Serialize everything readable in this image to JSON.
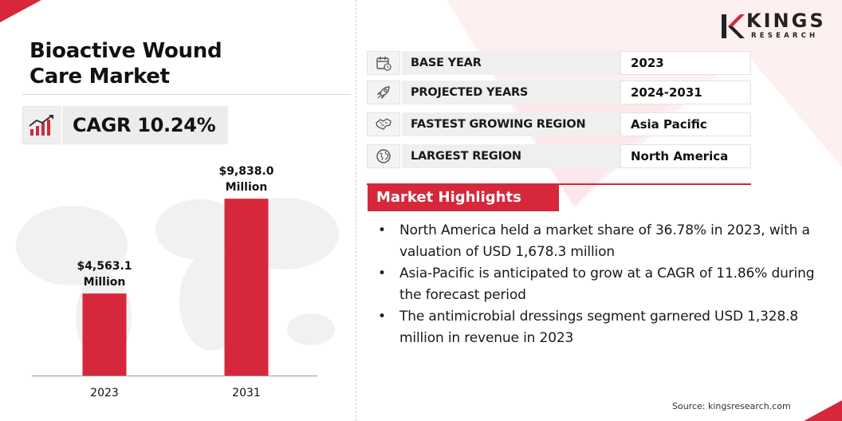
{
  "title_line1": "Bioactive Wound",
  "title_line2": "Care Market",
  "cagr": "CAGR 10.24%",
  "logo": {
    "name": "KINGS",
    "sub": "RESEARCH"
  },
  "colors": {
    "accent": "#d6283a",
    "bar": "#d6283a",
    "label_bg": "#efefef"
  },
  "info_rows": [
    {
      "icon": "calendar-icon",
      "label": "BASE YEAR",
      "value": "2023"
    },
    {
      "icon": "rocket-icon",
      "label": "PROJECTED YEARS",
      "value": "2024-2031"
    },
    {
      "icon": "region-map-icon",
      "label": "FASTEST GROWING REGION",
      "value": "Asia Pacific"
    },
    {
      "icon": "globe-icon",
      "label": "LARGEST REGION",
      "value": "North America"
    }
  ],
  "highlights_title": "Market Highlights",
  "highlights": [
    "North America held a market share of 36.78% in 2023, with a valuation of USD 1,678.3 million",
    "Asia-Pacific is anticipated to grow at a CAGR of 11.86% during the forecast period",
    "The antimicrobial dressings segment garnered USD 1,328.8 million in revenue in 2023"
  ],
  "source": "Source: kingsresearch.com",
  "chart_data": {
    "type": "bar",
    "categories": [
      "2023",
      "2031"
    ],
    "values": [
      4563.1,
      9838.0
    ],
    "value_labels": [
      [
        "$4,563.1",
        "Million"
      ],
      [
        "$9,838.0",
        "Million"
      ]
    ],
    "title": "",
    "xlabel": "",
    "ylabel": "",
    "ylim": [
      0,
      11000
    ],
    "grid": false,
    "legend": "none"
  }
}
